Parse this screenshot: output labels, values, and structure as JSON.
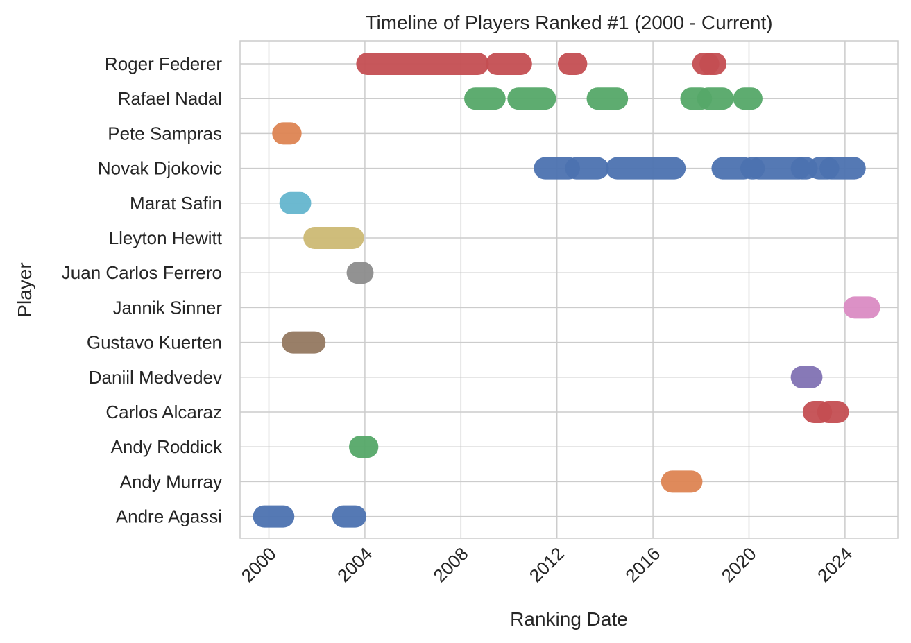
{
  "chart_data": {
    "type": "timeline",
    "title": "Timeline of Players Ranked #1 (2000 - Current)",
    "xlabel": "Ranking Date",
    "ylabel": "Player",
    "xlim": [
      1998.8,
      2026.2
    ],
    "xticks": [
      2000,
      2004,
      2008,
      2012,
      2016,
      2020,
      2024
    ],
    "xtick_labels": [
      "2000",
      "2004",
      "2008",
      "2012",
      "2016",
      "2020",
      "2024"
    ],
    "grid": true,
    "players": [
      "Roger Federer",
      "Rafael Nadal",
      "Pete Sampras",
      "Novak Djokovic",
      "Marat Safin",
      "Lleyton Hewitt",
      "Juan Carlos Ferrero",
      "Jannik Sinner",
      "Gustavo Kuerten",
      "Daniil Medvedev",
      "Carlos Alcaraz",
      "Andy Roddick",
      "Andy Murray",
      "Andre Agassi"
    ],
    "colors": {
      "Roger Federer": "#c44e52",
      "Rafael Nadal": "#55a868",
      "Pete Sampras": "#dd8452",
      "Novak Djokovic": "#4c72b0",
      "Marat Safin": "#64b5cd",
      "Lleyton Hewitt": "#ccb974",
      "Juan Carlos Ferrero": "#8c8c8c",
      "Jannik Sinner": "#da8bc3",
      "Gustavo Kuerten": "#937860",
      "Daniil Medvedev": "#8172b3",
      "Carlos Alcaraz": "#c44e52",
      "Andy Roddick": "#55a868",
      "Andy Murray": "#dd8452",
      "Andre Agassi": "#4c72b0"
    },
    "series": [
      {
        "name": "Roger Federer",
        "periods": [
          [
            2004.1,
            2008.7
          ],
          [
            2009.5,
            2010.5
          ],
          [
            2012.5,
            2012.8
          ],
          [
            2018.1,
            2018.3
          ],
          [
            2018.4,
            2018.6
          ]
        ]
      },
      {
        "name": "Rafael Nadal",
        "periods": [
          [
            2008.6,
            2009.4
          ],
          [
            2010.4,
            2011.5
          ],
          [
            2013.7,
            2014.5
          ],
          [
            2017.6,
            2018.0
          ],
          [
            2018.3,
            2018.9
          ],
          [
            2019.8,
            2020.1
          ]
        ]
      },
      {
        "name": "Pete Sampras",
        "periods": [
          [
            2000.6,
            2000.9
          ]
        ]
      },
      {
        "name": "Novak Djokovic",
        "periods": [
          [
            2011.5,
            2012.5
          ],
          [
            2012.8,
            2013.7
          ],
          [
            2014.5,
            2016.9
          ],
          [
            2018.9,
            2019.8
          ],
          [
            2020.1,
            2020.2
          ],
          [
            2020.4,
            2022.1
          ],
          [
            2022.2,
            2022.4
          ],
          [
            2022.9,
            2023.3
          ],
          [
            2023.4,
            2024.4
          ]
        ]
      },
      {
        "name": "Marat Safin",
        "periods": [
          [
            2000.9,
            2001.3
          ]
        ]
      },
      {
        "name": "Lleyton Hewitt",
        "periods": [
          [
            2001.9,
            2003.5
          ]
        ]
      },
      {
        "name": "Juan Carlos Ferrero",
        "periods": [
          [
            2003.7,
            2003.9
          ]
        ]
      },
      {
        "name": "Jannik Sinner",
        "periods": [
          [
            2024.4,
            2025.0
          ]
        ]
      },
      {
        "name": "Gustavo Kuerten",
        "periods": [
          [
            2001.0,
            2001.9
          ]
        ]
      },
      {
        "name": "Daniil Medvedev",
        "periods": [
          [
            2022.2,
            2022.6
          ]
        ]
      },
      {
        "name": "Carlos Alcaraz",
        "periods": [
          [
            2022.7,
            2023.0
          ],
          [
            2023.3,
            2023.7
          ]
        ]
      },
      {
        "name": "Andy Roddick",
        "periods": [
          [
            2003.8,
            2004.1
          ]
        ]
      },
      {
        "name": "Andy Murray",
        "periods": [
          [
            2016.8,
            2017.6
          ]
        ]
      },
      {
        "name": "Andre Agassi",
        "periods": [
          [
            1999.8,
            2000.6
          ],
          [
            2003.1,
            2003.6
          ]
        ]
      }
    ]
  }
}
